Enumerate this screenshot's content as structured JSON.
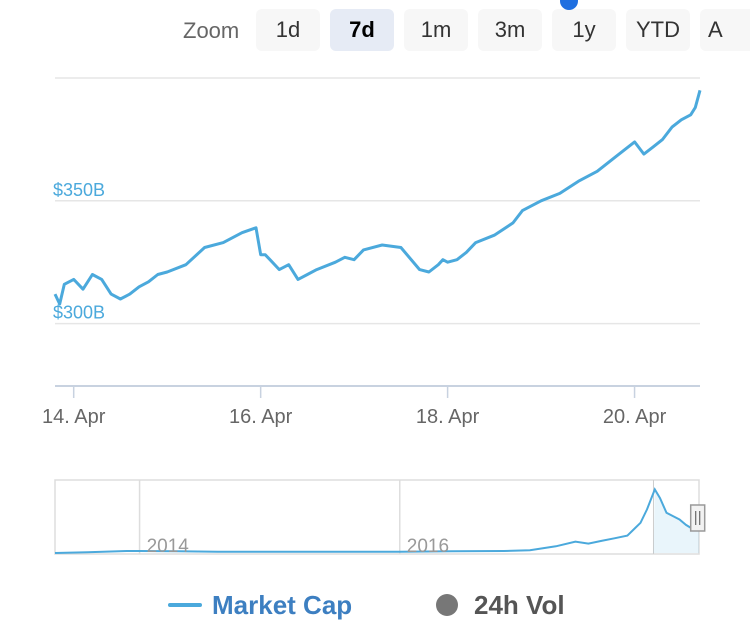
{
  "zoom": {
    "label": "Zoom",
    "buttons": [
      {
        "label": "1d",
        "active": false
      },
      {
        "label": "7d",
        "active": true
      },
      {
        "label": "1m",
        "active": false
      },
      {
        "label": "3m",
        "active": false
      },
      {
        "label": "1y",
        "active": false
      },
      {
        "label": "YTD",
        "active": false
      },
      {
        "label": "A",
        "active": false
      }
    ]
  },
  "colors": {
    "series": "#4ba9dc",
    "series_legend_text": "#3d7fc1",
    "vol_legend": "#777777",
    "grid": "#e6e6e6",
    "tick_text": "#666666"
  },
  "chart_data": [
    {
      "type": "line",
      "title": "",
      "xlabel": "",
      "ylabel": "",
      "x_ticks": [
        "14. Apr",
        "16. Apr",
        "18. Apr",
        "20. Apr"
      ],
      "x_range_days": [
        13.8,
        20.7
      ],
      "y_ticks": [
        "$300B",
        "$350B"
      ],
      "y_tick_values": [
        300,
        350
      ],
      "ylim": [
        275,
        400
      ],
      "grid": true,
      "series": [
        {
          "name": "Market Cap",
          "x": [
            13.8,
            13.85,
            13.9,
            14.0,
            14.1,
            14.2,
            14.3,
            14.4,
            14.5,
            14.6,
            14.7,
            14.8,
            14.9,
            15.0,
            15.2,
            15.4,
            15.6,
            15.8,
            15.95,
            16.0,
            16.05,
            16.1,
            16.2,
            16.3,
            16.4,
            16.5,
            16.6,
            16.8,
            16.9,
            17.0,
            17.1,
            17.3,
            17.5,
            17.7,
            17.8,
            17.9,
            17.95,
            18.0,
            18.1,
            18.2,
            18.3,
            18.5,
            18.7,
            18.8,
            19.0,
            19.2,
            19.4,
            19.6,
            19.8,
            20.0,
            20.1,
            20.2,
            20.3,
            20.4,
            20.5,
            20.6,
            20.65,
            20.7
          ],
          "values": [
            312,
            308,
            316,
            318,
            314,
            320,
            318,
            312,
            310,
            312,
            315,
            317,
            320,
            321,
            324,
            331,
            333,
            337,
            339,
            328,
            328,
            326,
            322,
            324,
            318,
            320,
            322,
            325,
            327,
            326,
            330,
            332,
            331,
            322,
            321,
            324,
            326,
            325,
            326,
            329,
            333,
            336,
            341,
            346,
            350,
            353,
            358,
            362,
            368,
            374,
            369,
            372,
            375,
            380,
            383,
            385,
            388,
            395
          ]
        }
      ]
    },
    {
      "type": "area",
      "title": "",
      "x_ticks": [
        "2014",
        "2016"
      ],
      "x_tick_values": [
        2014,
        2016
      ],
      "x_range": [
        2013.35,
        2018.3
      ],
      "ylim": [
        0,
        1
      ],
      "selection_start": 2018.29,
      "series": [
        {
          "name": "Market Cap",
          "x": [
            2013.35,
            2013.6,
            2013.9,
            2014.0,
            2014.3,
            2014.6,
            2015.0,
            2015.4,
            2015.8,
            2016.0,
            2016.4,
            2016.8,
            2017.0,
            2017.2,
            2017.35,
            2017.45,
            2017.55,
            2017.65,
            2017.75,
            2017.85,
            2017.9,
            2017.96,
            2018.0,
            2018.05,
            2018.1,
            2018.15,
            2018.2,
            2018.25,
            2018.3
          ],
          "values": [
            0.0,
            0.01,
            0.03,
            0.03,
            0.025,
            0.02,
            0.02,
            0.02,
            0.02,
            0.02,
            0.025,
            0.03,
            0.04,
            0.1,
            0.17,
            0.14,
            0.18,
            0.22,
            0.26,
            0.45,
            0.65,
            0.95,
            0.82,
            0.6,
            0.55,
            0.5,
            0.42,
            0.36,
            0.4
          ]
        }
      ]
    }
  ],
  "legend": [
    {
      "label": "Market Cap"
    },
    {
      "label": "24h Vol"
    }
  ]
}
